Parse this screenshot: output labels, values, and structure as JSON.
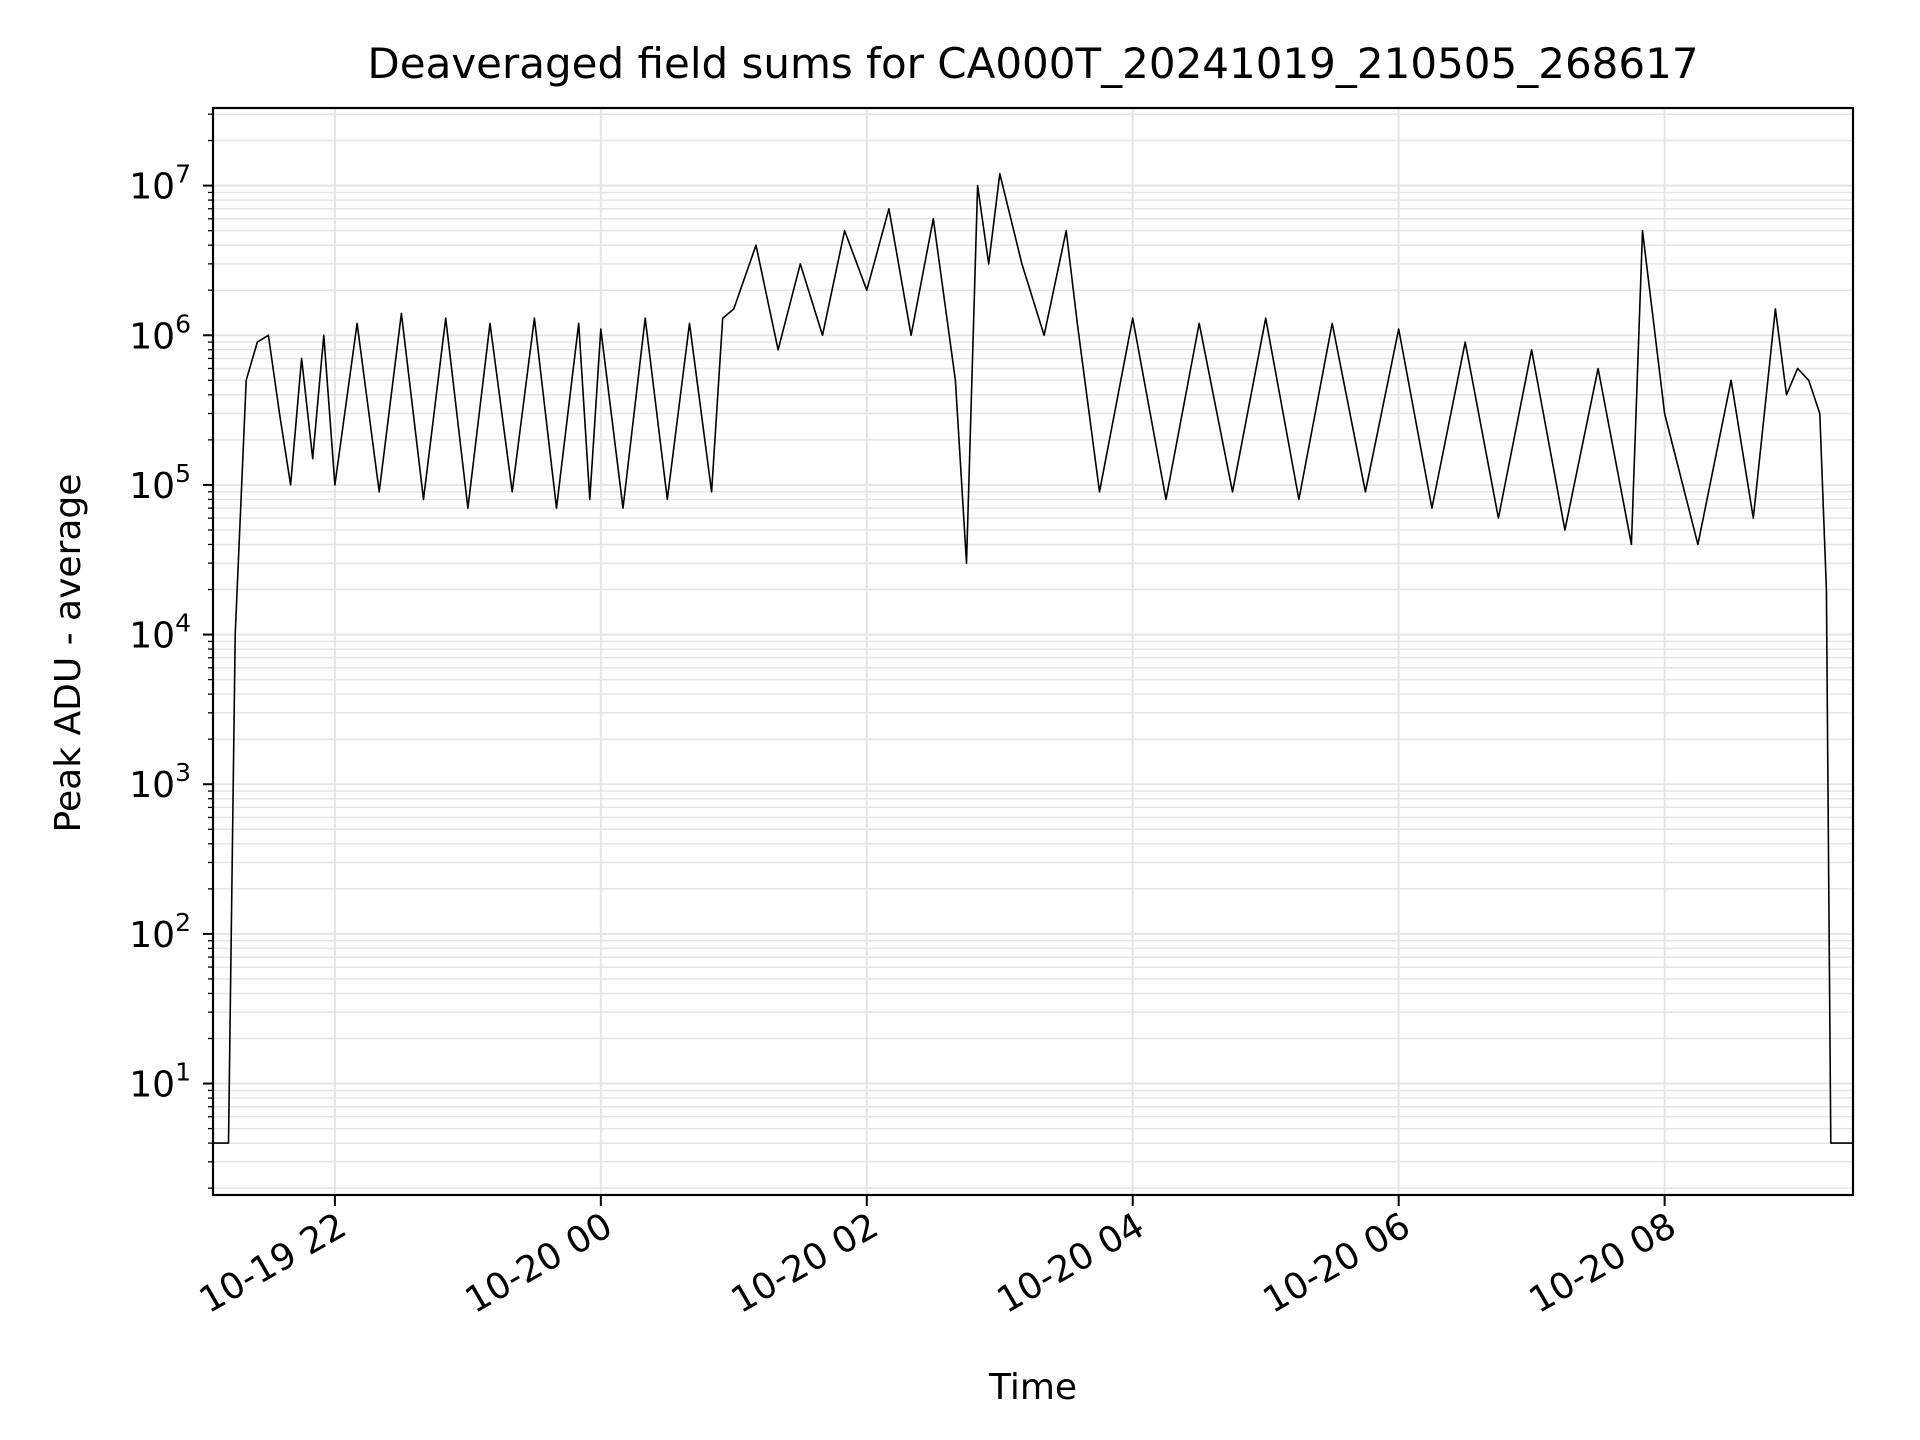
{
  "chart_data": {
    "type": "line",
    "title": "Deaveraged field sums for CA000T_20241019_210505_268617",
    "xlabel": "Time",
    "ylabel": "Peak ADU - average",
    "yscale": "log",
    "ylim": [
      1.8,
      33000000
    ],
    "xlim": [
      "2024-10-19 21:05",
      "2024-10-20 09:25"
    ],
    "grid": true,
    "line_color": "#000000",
    "grid_color": "#e5e5e5",
    "xticks": [
      {
        "value": "2024-10-19 22:00",
        "label": "10-19 22"
      },
      {
        "value": "2024-10-20 00:00",
        "label": "10-20 00"
      },
      {
        "value": "2024-10-20 02:00",
        "label": "10-20 02"
      },
      {
        "value": "2024-10-20 04:00",
        "label": "10-20 04"
      },
      {
        "value": "2024-10-20 06:00",
        "label": "10-20 06"
      },
      {
        "value": "2024-10-20 08:00",
        "label": "10-20 08"
      }
    ],
    "yticks": [
      {
        "value": 10,
        "base": "10",
        "exp": "1"
      },
      {
        "value": 100,
        "base": "10",
        "exp": "2"
      },
      {
        "value": 1000,
        "base": "10",
        "exp": "3"
      },
      {
        "value": 10000,
        "base": "10",
        "exp": "4"
      },
      {
        "value": 100000,
        "base": "10",
        "exp": "5"
      },
      {
        "value": 1000000,
        "base": "10",
        "exp": "6"
      },
      {
        "value": 10000000,
        "base": "10",
        "exp": "7"
      }
    ],
    "series": [
      {
        "x": [
          "2024-10-19 21:05",
          "2024-10-19 21:12",
          "2024-10-19 21:15",
          "2024-10-19 21:20",
          "2024-10-19 21:25",
          "2024-10-19 21:30",
          "2024-10-19 21:35",
          "2024-10-19 21:40",
          "2024-10-19 21:45",
          "2024-10-19 21:50",
          "2024-10-19 21:55",
          "2024-10-19 22:00",
          "2024-10-19 22:10",
          "2024-10-19 22:20",
          "2024-10-19 22:30",
          "2024-10-19 22:40",
          "2024-10-19 22:50",
          "2024-10-19 23:00",
          "2024-10-19 23:10",
          "2024-10-19 23:20",
          "2024-10-19 23:30",
          "2024-10-19 23:40",
          "2024-10-19 23:50",
          "2024-10-19 23:55",
          "2024-10-20 00:00",
          "2024-10-20 00:10",
          "2024-10-20 00:20",
          "2024-10-20 00:30",
          "2024-10-20 00:40",
          "2024-10-20 00:50",
          "2024-10-20 00:55",
          "2024-10-20 01:00",
          "2024-10-20 01:10",
          "2024-10-20 01:20",
          "2024-10-20 01:30",
          "2024-10-20 01:40",
          "2024-10-20 01:50",
          "2024-10-20 02:00",
          "2024-10-20 02:10",
          "2024-10-20 02:20",
          "2024-10-20 02:30",
          "2024-10-20 02:40",
          "2024-10-20 02:45",
          "2024-10-20 02:50",
          "2024-10-20 02:55",
          "2024-10-20 03:00",
          "2024-10-20 03:10",
          "2024-10-20 03:20",
          "2024-10-20 03:30",
          "2024-10-20 03:35",
          "2024-10-20 03:45",
          "2024-10-20 04:00",
          "2024-10-20 04:15",
          "2024-10-20 04:30",
          "2024-10-20 04:45",
          "2024-10-20 05:00",
          "2024-10-20 05:15",
          "2024-10-20 05:30",
          "2024-10-20 05:45",
          "2024-10-20 06:00",
          "2024-10-20 06:15",
          "2024-10-20 06:30",
          "2024-10-20 06:45",
          "2024-10-20 07:00",
          "2024-10-20 07:15",
          "2024-10-20 07:30",
          "2024-10-20 07:45",
          "2024-10-20 07:50",
          "2024-10-20 08:00",
          "2024-10-20 08:15",
          "2024-10-20 08:30",
          "2024-10-20 08:40",
          "2024-10-20 08:50",
          "2024-10-20 08:55",
          "2024-10-20 09:00",
          "2024-10-20 09:05",
          "2024-10-20 09:10",
          "2024-10-20 09:13",
          "2024-10-20 09:15",
          "2024-10-20 09:25"
        ],
        "y": [
          4,
          4,
          10000,
          500000,
          900000,
          1000000,
          300000,
          100000,
          700000,
          150000,
          1000000,
          100000,
          1200000,
          90000,
          1400000,
          80000,
          1300000,
          70000,
          1200000,
          90000,
          1300000,
          70000,
          1200000,
          80000,
          1100000,
          70000,
          1300000,
          80000,
          1200000,
          90000,
          1300000,
          1500000,
          4000000,
          800000,
          3000000,
          1000000,
          5000000,
          2000000,
          7000000,
          1000000,
          6000000,
          500000,
          30000,
          10000000,
          3000000,
          12000000,
          3000000,
          1000000,
          5000000,
          1200000,
          90000,
          1300000,
          80000,
          1200000,
          90000,
          1300000,
          80000,
          1200000,
          90000,
          1100000,
          70000,
          900000,
          60000,
          800000,
          50000,
          600000,
          40000,
          5000000,
          300000,
          40000,
          500000,
          60000,
          1500000,
          400000,
          600000,
          500000,
          300000,
          20000,
          4,
          4
        ]
      }
    ]
  }
}
